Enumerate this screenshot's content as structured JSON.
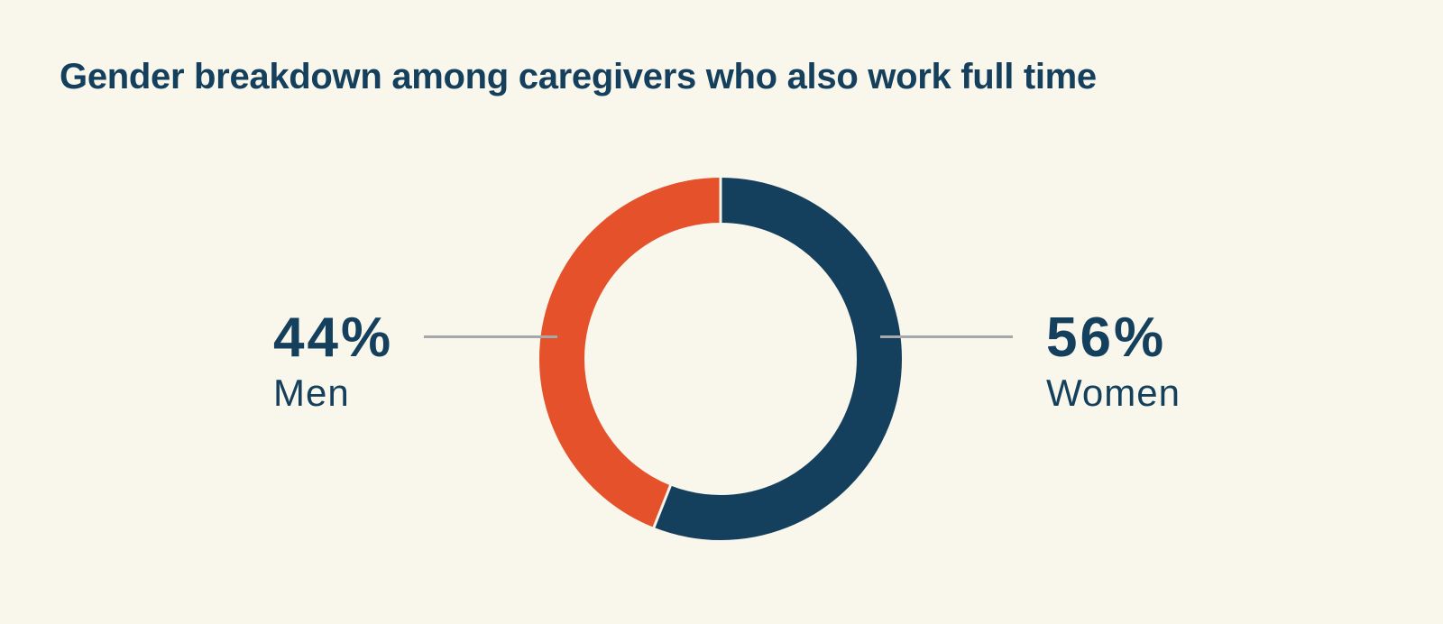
{
  "title": "Gender breakdown among caregivers who also work full time",
  "colors": {
    "background": "#f9f6eb",
    "text": "#15405d",
    "navy": "#15405d",
    "orange": "#e4512a",
    "connector_line": "#a5a9ab",
    "segment_separator": "#f7f4ea"
  },
  "chart_data": {
    "type": "pie",
    "subtype": "donut",
    "title": "Gender breakdown among caregivers who also work full time",
    "categories": [
      "Women",
      "Men"
    ],
    "values": [
      56,
      44
    ],
    "units": "%",
    "segment_colors": [
      "#15405d",
      "#e4512a"
    ],
    "start_angle_deg": 0,
    "direction": "clockwise",
    "legend_position": "none",
    "callouts": {
      "left": {
        "value": "44%",
        "label": "Men",
        "color": "#e4512a",
        "side": "left"
      },
      "right": {
        "value": "56%",
        "label": "Women",
        "color": "#15405d",
        "side": "right"
      }
    }
  }
}
